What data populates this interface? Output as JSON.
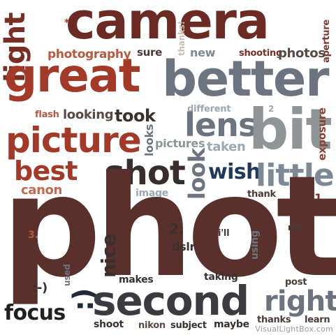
{
  "words": [
    {
      "text": "camera",
      "color": "#6b2a22"
    },
    {
      "text": "light",
      "color": "#7b2f24"
    },
    {
      "text": "great",
      "color": "#a33a28"
    },
    {
      "text": "better",
      "color": "#6c7480"
    },
    {
      "text": "photography",
      "color": "#b55a3e"
    },
    {
      "text": "sure",
      "color": "#4a3a36"
    },
    {
      "text": "new",
      "color": "#7d8a96"
    },
    {
      "text": "thanks!",
      "color": "#cbbdb4"
    },
    {
      "text": "shooting",
      "color": "#7b2f24"
    },
    {
      "text": "photos",
      "color": "#5a4a46"
    },
    {
      "text": "aperture",
      "color": "#7b3a2e"
    },
    {
      "text": "*",
      "color": "#a33a28"
    },
    {
      "text": "flash",
      "color": "#b05a45"
    },
    {
      "text": "looking",
      "color": "#5a4a46"
    },
    {
      "text": "took",
      "color": "#3a3030"
    },
    {
      "text": "different",
      "color": "#9aa8b4"
    },
    {
      "text": "2",
      "color": "#9aa8b4"
    },
    {
      "text": "picture",
      "color": "#a33a28"
    },
    {
      "text": "lens",
      "color": "#6c7480"
    },
    {
      "text": "bit",
      "color": "#8e9596"
    },
    {
      "text": "exposure",
      "color": "#8a4030"
    },
    {
      "text": "looks",
      "color": "#6c7480"
    },
    {
      "text": "pictures",
      "color": "#8a959c"
    },
    {
      "text": "taken",
      "color": "#9aa8b4"
    },
    {
      "text": "best",
      "color": "#a33a28"
    },
    {
      "text": "shot",
      "color": "#3a2e2e"
    },
    {
      "text": "look",
      "color": "#6c7480"
    },
    {
      "text": "wish",
      "color": "#1f3a5a"
    },
    {
      "text": "little",
      "color": "#7d8a96"
    },
    {
      "text": "canon",
      "color": "#c06a52"
    },
    {
      "text": "image",
      "color": "#9aa8b4"
    },
    {
      "text": "thank",
      "color": "#4a3a36"
    },
    {
      "text": "1.",
      "color": "#7b2f24"
    },
    {
      "text": "photo",
      "color": "#5a302c"
    },
    {
      "text": "3.",
      "color": "#b05a45"
    },
    {
      "text": "2.",
      "color": "#3a3030"
    },
    {
      "text": "i'll",
      "color": "#4a3a36"
    },
    {
      "text": "me.",
      "color": "#4a3a36"
    },
    {
      "text": "nice",
      "color": "#3a3030"
    },
    {
      "text": "dslr",
      "color": "#3a3030"
    },
    {
      "text": "using",
      "color": "#6c7480"
    },
    {
      "text": ":-)",
      "color": "#3a3030"
    },
    {
      "text": "used",
      "color": "#6c7480"
    },
    {
      "text": ":)",
      "color": "#1f2a3a"
    },
    {
      "text": "makes",
      "color": "#3a3030"
    },
    {
      "text": "taking",
      "color": "#3a3030"
    },
    {
      "text": "post",
      "color": "#4a3a36"
    },
    {
      "text": "focus",
      "color": "#1f2020"
    },
    {
      "text": "second",
      "color": "#3a3a40"
    },
    {
      "text": "right",
      "color": "#6c7480"
    },
    {
      "text": "shoot",
      "color": "#3a3030"
    },
    {
      "text": "nikon",
      "color": "#5a4a46"
    },
    {
      "text": "subject",
      "color": "#3a3030"
    },
    {
      "text": "maybe",
      "color": "#3a3030"
    },
    {
      "text": "thanks",
      "color": "#4a3a36"
    },
    {
      "text": "learn",
      "color": "#4a3a36"
    }
  ],
  "watermark": {
    "text": "VisualLightBox.com",
    "color": "#9a9a9a"
  }
}
